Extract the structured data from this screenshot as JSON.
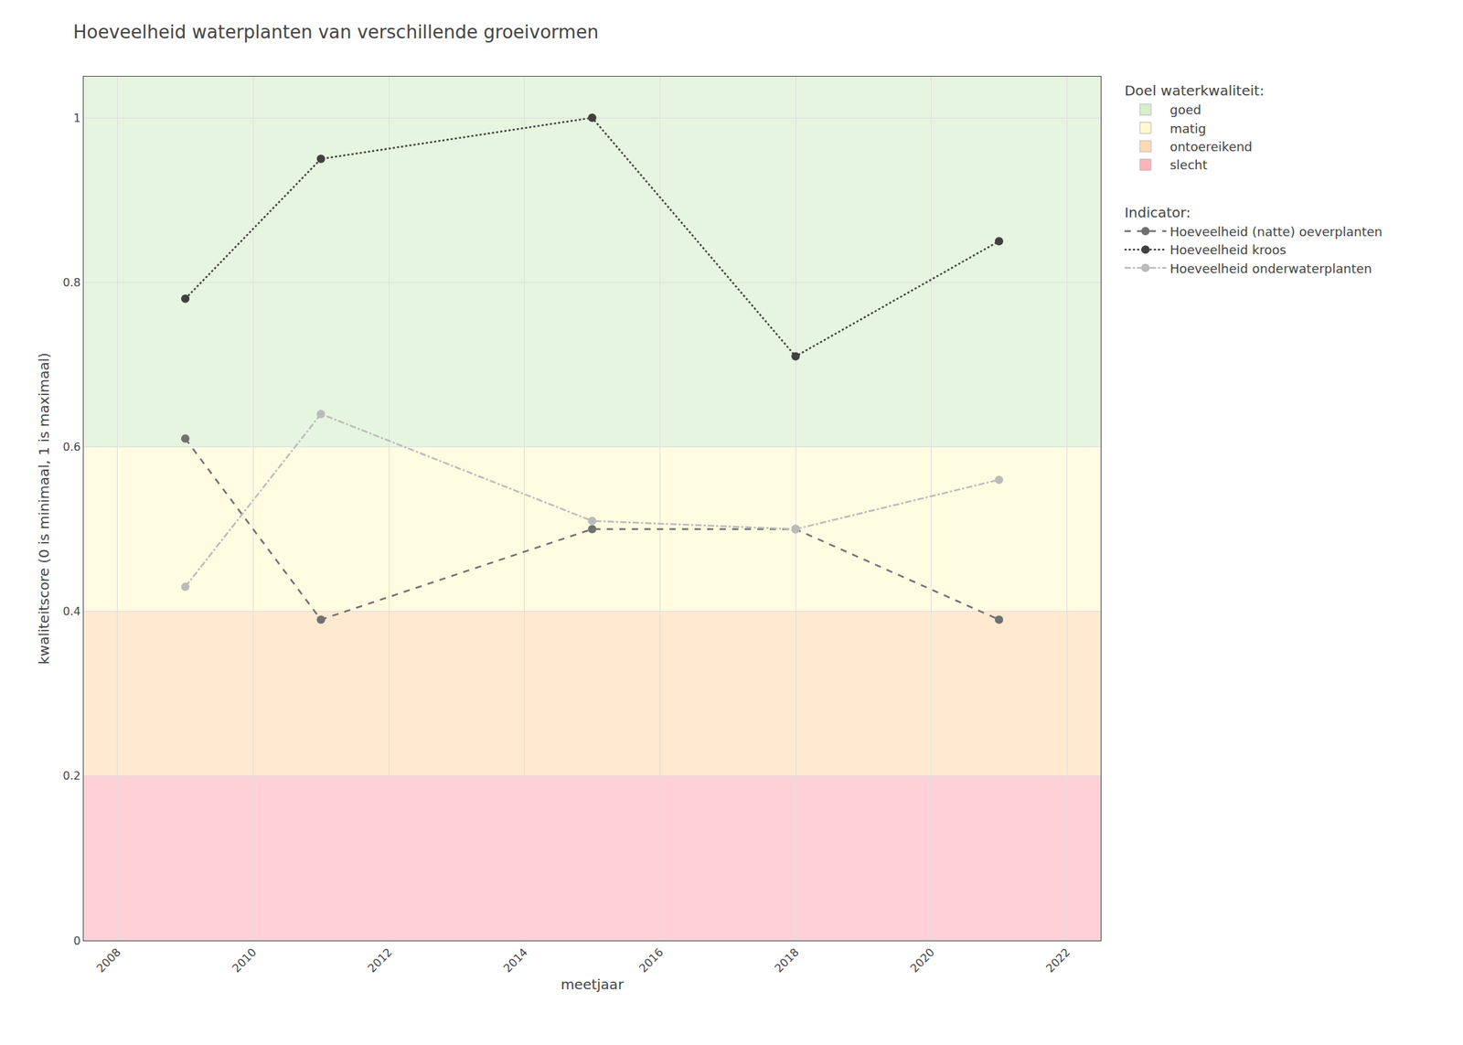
{
  "chart_data": {
    "type": "line",
    "title": "Hoeveelheid waterplanten van verschillende groeivormen",
    "x_label": "meetjaar",
    "y_label": "kwaliteitscore (0 is minimaal, 1 is maximaal)",
    "x": [
      2009,
      2011,
      2015,
      2018,
      2021
    ],
    "series": [
      {
        "name": "Hoeveelheid (natte) oeverplanten",
        "color": "#707070",
        "line_style": "dash",
        "marker": "circle",
        "values": [
          0.61,
          0.39,
          0.5,
          0.5,
          0.39
        ]
      },
      {
        "name": "Hoeveelheid kroos",
        "color": "#404040",
        "line_style": "dot",
        "marker": "circle",
        "values": [
          0.78,
          0.95,
          1.0,
          0.71,
          0.85
        ]
      },
      {
        "name": "Hoeveelheid onderwaterplanten",
        "color": "#BBBBBB",
        "line_style": "dashdot",
        "marker": "circle",
        "values": [
          0.43,
          0.64,
          0.51,
          0.5,
          0.56
        ]
      }
    ],
    "series_title": "Indicator:",
    "bands": {
      "title": "Doel waterkwaliteit:",
      "items": [
        {
          "label": "goed",
          "color": "#D5EFCA",
          "ymin": 0.6,
          "ymax": 1.05
        },
        {
          "label": "matig",
          "color": "#FFFACD",
          "ymin": 0.4,
          "ymax": 0.6
        },
        {
          "label": "ontoereikend",
          "color": "#FFDAB3",
          "ymin": 0.2,
          "ymax": 0.4
        },
        {
          "label": "slecht",
          "color": "#FFB3BA",
          "ymin": 0.0,
          "ymax": 0.2
        }
      ]
    },
    "xlim": [
      2007.5,
      2022.5
    ],
    "ylim": [
      0.0,
      1.05
    ],
    "xticks": [
      2008,
      2010,
      2012,
      2014,
      2016,
      2018,
      2020,
      2022
    ],
    "yticks": [
      0.0,
      0.2,
      0.4,
      0.6,
      0.8,
      1.0
    ],
    "grid": true,
    "legend": "right"
  }
}
